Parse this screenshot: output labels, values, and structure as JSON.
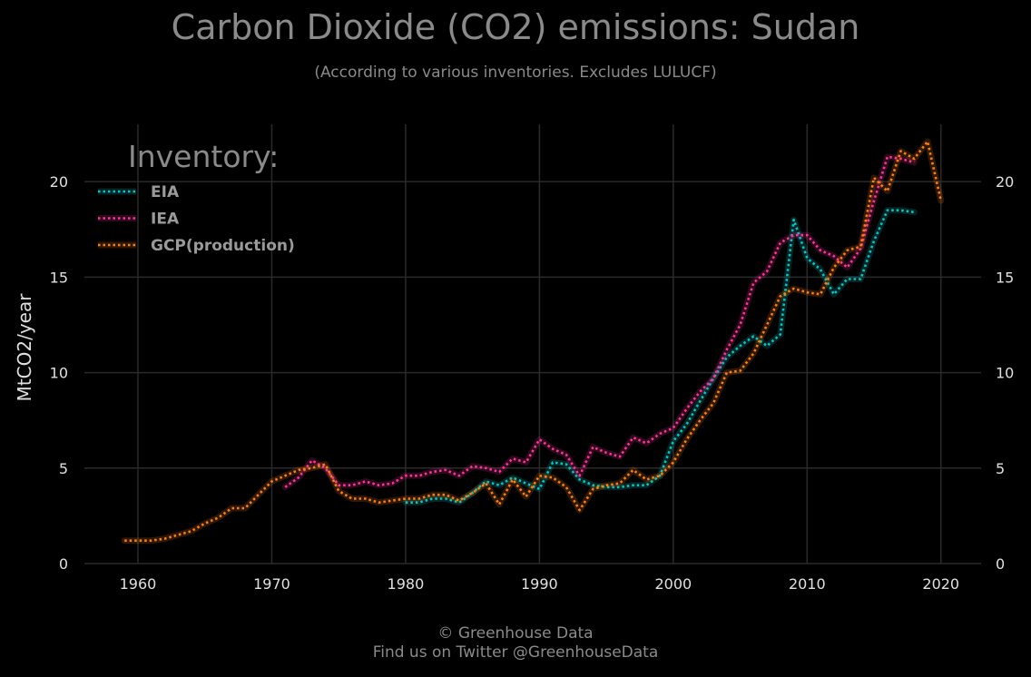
{
  "title": "Carbon Dioxide (CO2) emissions: Sudan",
  "subtitle": "(According to various inventories. Excludes LULUCF)",
  "footer": {
    "line1": "© Greenhouse Data",
    "line2": "Find us on Twitter @GreenhouseData"
  },
  "colors": {
    "background": "#000000",
    "grid": "#2a2a2a",
    "EIA": "#00c8c8",
    "IEA": "#ff3399",
    "GCP": "#ff7f0e"
  },
  "chart_data": {
    "type": "line",
    "title": "Carbon Dioxide (CO2) emissions: Sudan",
    "subtitle": "(According to various inventories. Excludes LULUCF)",
    "xlabel": "",
    "ylabel": "MtCO2/year",
    "xlim": [
      1956,
      2023
    ],
    "ylim": [
      0,
      23
    ],
    "xticks": [
      1960,
      1970,
      1980,
      1990,
      2000,
      2010,
      2020
    ],
    "yticks": [
      0,
      5,
      10,
      15,
      20
    ],
    "grid": true,
    "legend": {
      "title": "Inventory:",
      "position": "top-left"
    },
    "series": [
      {
        "name": "EIA",
        "color": "#00c8c8",
        "x": [
          1980,
          1981,
          1982,
          1983,
          1984,
          1985,
          1986,
          1987,
          1988,
          1989,
          1990,
          1991,
          1992,
          1993,
          1994,
          1995,
          1996,
          1997,
          1998,
          1999,
          2000,
          2001,
          2002,
          2003,
          2004,
          2005,
          2006,
          2007,
          2008,
          2009,
          2010,
          2011,
          2012,
          2013,
          2014,
          2015,
          2016,
          2017,
          2018
        ],
        "y": [
          3.2,
          3.2,
          3.4,
          3.4,
          3.2,
          3.7,
          4.3,
          4.1,
          4.5,
          4.2,
          3.9,
          5.3,
          5.2,
          4.4,
          4.1,
          4.0,
          4.0,
          4.1,
          4.1,
          4.6,
          6.4,
          7.3,
          8.5,
          9.7,
          10.8,
          11.4,
          11.9,
          11.4,
          12.0,
          18.0,
          16.0,
          15.4,
          14.1,
          14.9,
          14.9,
          16.9,
          18.5,
          18.5,
          18.4
        ]
      },
      {
        "name": "IEA",
        "color": "#ff3399",
        "x": [
          1971,
          1972,
          1973,
          1974,
          1975,
          1976,
          1977,
          1978,
          1979,
          1980,
          1981,
          1982,
          1983,
          1984,
          1985,
          1986,
          1987,
          1988,
          1989,
          1990,
          1991,
          1992,
          1993,
          1994,
          1995,
          1996,
          1997,
          1998,
          1999,
          2000,
          2001,
          2002,
          2003,
          2004,
          2005,
          2006,
          2007,
          2008,
          2009,
          2010,
          2011,
          2012,
          2013,
          2014,
          2015,
          2016,
          2017,
          2018
        ],
        "y": [
          4.0,
          4.5,
          5.4,
          5.0,
          4.1,
          4.1,
          4.3,
          4.1,
          4.2,
          4.6,
          4.6,
          4.8,
          4.9,
          4.6,
          5.1,
          5.0,
          4.8,
          5.5,
          5.3,
          6.5,
          6.0,
          5.7,
          4.6,
          6.1,
          5.8,
          5.6,
          6.6,
          6.3,
          6.8,
          7.1,
          8.1,
          9.0,
          9.7,
          11.2,
          12.5,
          14.7,
          15.3,
          16.8,
          17.2,
          17.2,
          16.4,
          16.1,
          15.5,
          16.5,
          19.0,
          21.3,
          21.2,
          21.0
        ]
      },
      {
        "name": "GCP(production)",
        "color": "#ff7f0e",
        "x": [
          1959,
          1960,
          1961,
          1962,
          1963,
          1964,
          1965,
          1966,
          1967,
          1968,
          1969,
          1970,
          1971,
          1972,
          1973,
          1974,
          1975,
          1976,
          1977,
          1978,
          1979,
          1980,
          1981,
          1982,
          1983,
          1984,
          1985,
          1986,
          1987,
          1988,
          1989,
          1990,
          1991,
          1992,
          1993,
          1994,
          1995,
          1996,
          1997,
          1998,
          1999,
          2000,
          2001,
          2002,
          2003,
          2004,
          2005,
          2006,
          2007,
          2008,
          2009,
          2010,
          2011,
          2012,
          2013,
          2014,
          2015,
          2016,
          2017,
          2018,
          2019,
          2020
        ],
        "y": [
          1.2,
          1.2,
          1.2,
          1.3,
          1.5,
          1.7,
          2.1,
          2.4,
          2.9,
          2.9,
          3.6,
          4.3,
          4.6,
          4.9,
          5.0,
          5.2,
          3.8,
          3.4,
          3.4,
          3.2,
          3.3,
          3.4,
          3.4,
          3.6,
          3.6,
          3.3,
          3.7,
          4.2,
          3.1,
          4.4,
          3.5,
          4.6,
          4.5,
          4.0,
          2.8,
          3.9,
          4.1,
          4.2,
          4.9,
          4.4,
          4.6,
          5.3,
          6.5,
          7.5,
          8.4,
          10.0,
          10.1,
          11.0,
          12.5,
          14.0,
          14.4,
          14.2,
          14.1,
          15.5,
          16.4,
          16.6,
          20.2,
          19.5,
          21.6,
          21.2,
          22.1,
          19.0
        ]
      }
    ]
  }
}
